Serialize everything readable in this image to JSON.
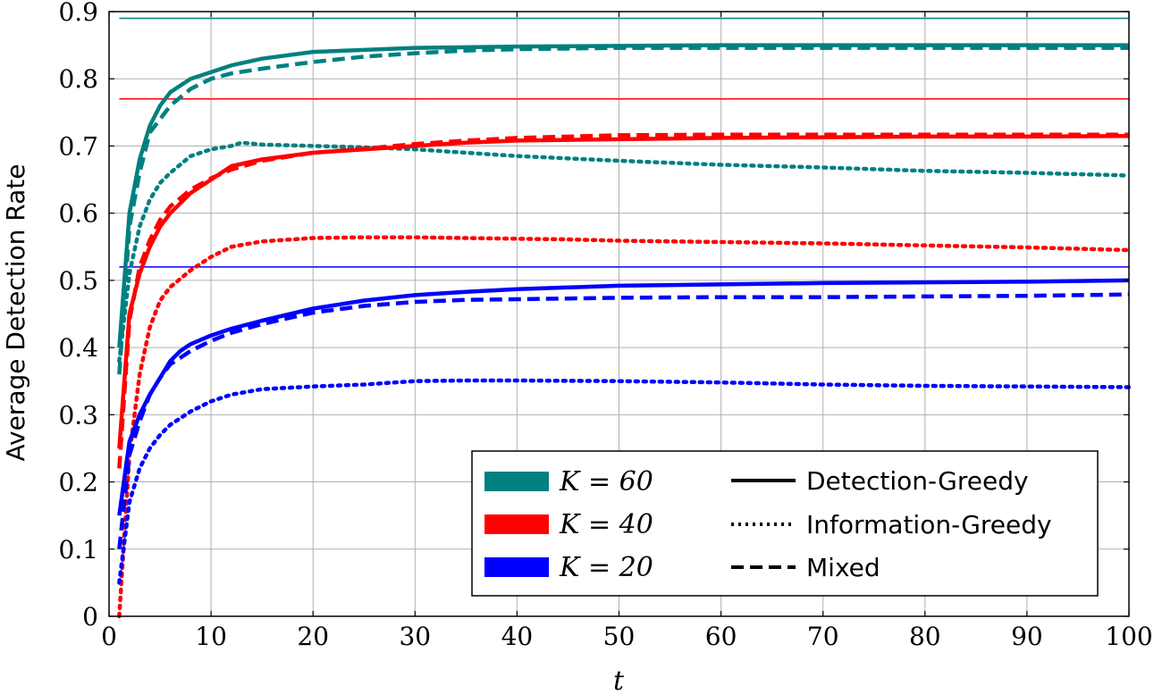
{
  "chart_data": {
    "type": "line",
    "xlabel": "t",
    "ylabel": "Average Detection Rate",
    "xlim": [
      0,
      100
    ],
    "ylim": [
      0,
      0.9
    ],
    "xticks": [
      0,
      10,
      20,
      30,
      40,
      50,
      60,
      70,
      80,
      90,
      100
    ],
    "yticks": [
      0,
      0.1,
      0.2,
      0.3,
      0.4,
      0.5,
      0.6,
      0.7,
      0.8,
      0.9
    ],
    "xtick_labels": [
      "0",
      "10",
      "20",
      "30",
      "40",
      "50",
      "60",
      "70",
      "80",
      "90",
      "100"
    ],
    "ytick_labels": [
      "0",
      "0.1",
      "0.2",
      "0.3",
      "0.4",
      "0.5",
      "0.6",
      "0.7",
      "0.8",
      "0.9"
    ],
    "grid": true,
    "legend": {
      "position": "bottom-right",
      "colors": [
        {
          "label": "K = 60",
          "color": "#008080"
        },
        {
          "label": "K = 40",
          "color": "#ff0000"
        },
        {
          "label": "K = 20",
          "color": "#0000ff"
        }
      ],
      "styles": [
        {
          "label": "Detection-Greedy",
          "dash": "solid"
        },
        {
          "label": "Information-Greedy",
          "dash": "dotted"
        },
        {
          "label": "Mixed",
          "dash": "dashed"
        }
      ]
    },
    "reference_lines": [
      {
        "y": 0.89,
        "color": "#008080"
      },
      {
        "y": 0.77,
        "color": "#ff0000"
      },
      {
        "y": 0.52,
        "color": "#0000ff"
      }
    ],
    "series": [
      {
        "color": "#008080",
        "dash": "solid",
        "x": [
          1,
          2,
          3,
          4,
          5,
          6,
          8,
          10,
          12,
          15,
          20,
          25,
          30,
          35,
          40,
          50,
          60,
          70,
          80,
          90,
          100
        ],
        "y": [
          0.4,
          0.6,
          0.68,
          0.73,
          0.76,
          0.78,
          0.8,
          0.81,
          0.82,
          0.83,
          0.84,
          0.843,
          0.846,
          0.847,
          0.848,
          0.849,
          0.85,
          0.85,
          0.85,
          0.85,
          0.85
        ]
      },
      {
        "color": "#008080",
        "dash": "dotted",
        "x": [
          1,
          2,
          3,
          4,
          5,
          6,
          8,
          10,
          12,
          13,
          15,
          20,
          25,
          30,
          35,
          40,
          50,
          60,
          70,
          80,
          90,
          100
        ],
        "y": [
          0.38,
          0.51,
          0.58,
          0.62,
          0.645,
          0.66,
          0.685,
          0.695,
          0.7,
          0.705,
          0.702,
          0.7,
          0.698,
          0.695,
          0.69,
          0.685,
          0.678,
          0.672,
          0.668,
          0.663,
          0.66,
          0.656
        ]
      },
      {
        "color": "#008080",
        "dash": "dashed",
        "x": [
          1,
          2,
          3,
          4,
          5,
          6,
          8,
          10,
          12,
          15,
          20,
          25,
          30,
          35,
          40,
          50,
          60,
          70,
          80,
          90,
          100
        ],
        "y": [
          0.36,
          0.58,
          0.66,
          0.72,
          0.74,
          0.76,
          0.785,
          0.8,
          0.808,
          0.815,
          0.825,
          0.833,
          0.838,
          0.842,
          0.844,
          0.846,
          0.846,
          0.846,
          0.846,
          0.846,
          0.846
        ]
      },
      {
        "color": "#ff0000",
        "dash": "solid",
        "x": [
          1,
          2,
          3,
          4,
          5,
          6,
          8,
          10,
          12,
          15,
          20,
          25,
          30,
          35,
          40,
          50,
          60,
          70,
          80,
          90,
          100
        ],
        "y": [
          0.25,
          0.45,
          0.51,
          0.55,
          0.58,
          0.6,
          0.63,
          0.65,
          0.67,
          0.68,
          0.69,
          0.695,
          0.7,
          0.705,
          0.708,
          0.71,
          0.712,
          0.713,
          0.714,
          0.714,
          0.715
        ]
      },
      {
        "color": "#ff0000",
        "dash": "dotted",
        "x": [
          1,
          2,
          3,
          4,
          5,
          6,
          8,
          10,
          12,
          15,
          20,
          25,
          30,
          35,
          40,
          45,
          50,
          60,
          70,
          80,
          90,
          100
        ],
        "y": [
          0,
          0.24,
          0.36,
          0.43,
          0.47,
          0.49,
          0.515,
          0.535,
          0.55,
          0.558,
          0.563,
          0.564,
          0.564,
          0.563,
          0.562,
          0.561,
          0.559,
          0.557,
          0.555,
          0.552,
          0.549,
          0.545
        ]
      },
      {
        "color": "#ff0000",
        "dash": "dashed",
        "x": [
          1,
          2,
          3,
          4,
          5,
          6,
          8,
          10,
          12,
          15,
          20,
          25,
          30,
          35,
          40,
          50,
          60,
          70,
          80,
          90,
          100
        ],
        "y": [
          0.22,
          0.44,
          0.52,
          0.56,
          0.59,
          0.61,
          0.635,
          0.652,
          0.665,
          0.678,
          0.69,
          0.696,
          0.703,
          0.708,
          0.712,
          0.716,
          0.717,
          0.717,
          0.717,
          0.717,
          0.717
        ]
      },
      {
        "color": "#0000ff",
        "dash": "solid",
        "x": [
          1,
          2,
          3,
          4,
          5,
          6,
          7,
          8,
          10,
          12,
          15,
          20,
          25,
          30,
          35,
          40,
          50,
          60,
          70,
          80,
          90,
          100
        ],
        "y": [
          0.15,
          0.26,
          0.3,
          0.33,
          0.355,
          0.38,
          0.395,
          0.405,
          0.418,
          0.428,
          0.44,
          0.458,
          0.47,
          0.478,
          0.483,
          0.487,
          0.492,
          0.494,
          0.496,
          0.497,
          0.498,
          0.5
        ]
      },
      {
        "color": "#0000ff",
        "dash": "dotted",
        "x": [
          1,
          2,
          3,
          4,
          5,
          6,
          8,
          10,
          12,
          15,
          20,
          25,
          30,
          35,
          40,
          50,
          60,
          70,
          80,
          90,
          100
        ],
        "y": [
          0.05,
          0.17,
          0.22,
          0.25,
          0.27,
          0.285,
          0.305,
          0.32,
          0.33,
          0.338,
          0.342,
          0.345,
          0.35,
          0.351,
          0.351,
          0.35,
          0.348,
          0.345,
          0.343,
          0.342,
          0.341
        ]
      },
      {
        "color": "#0000ff",
        "dash": "dashed",
        "x": [
          1,
          2,
          3,
          4,
          5,
          6,
          8,
          10,
          12,
          15,
          20,
          25,
          30,
          35,
          40,
          50,
          60,
          70,
          80,
          90,
          100
        ],
        "y": [
          0.1,
          0.24,
          0.29,
          0.33,
          0.355,
          0.375,
          0.395,
          0.41,
          0.422,
          0.435,
          0.452,
          0.462,
          0.468,
          0.471,
          0.472,
          0.474,
          0.475,
          0.475,
          0.476,
          0.477,
          0.479
        ]
      }
    ]
  }
}
